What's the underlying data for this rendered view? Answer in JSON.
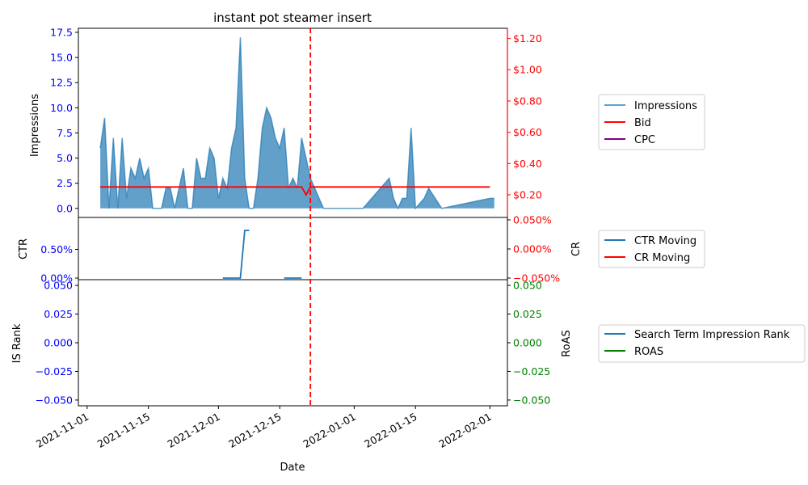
{
  "chart_data": [
    {
      "panel": "top",
      "type": "area",
      "title": "instant pot steamer insert",
      "ylabel_left": "Impressions",
      "ylim_left": [
        -0.9,
        17.9
      ],
      "yticks_left": [
        "0.0",
        "2.5",
        "5.0",
        "7.5",
        "10.0",
        "12.5",
        "15.0",
        "17.5"
      ],
      "ytick_values_left": [
        0,
        2.5,
        5,
        7.5,
        10,
        12.5,
        15,
        17.5
      ],
      "ylim_right": [
        0.055,
        1.265
      ],
      "yticks_right": [
        "$0.20",
        "$0.40",
        "$0.60",
        "$0.80",
        "$1.00",
        "$1.20"
      ],
      "ytick_values_right": [
        0.2,
        0.4,
        0.6,
        0.8,
        1.0,
        1.2
      ],
      "colors": {
        "impressions": "#1f77b4",
        "bid": "#ff0000",
        "cpc": "#800080",
        "left_axis": "#0000ff",
        "right_axis": "#ff0000"
      },
      "legend": [
        "Impressions",
        "Bid",
        "CPC"
      ],
      "legend_placement": "right",
      "series": [
        {
          "name": "Impressions",
          "x": [
            "2021-11-04",
            "2021-11-05",
            "2021-11-06",
            "2021-11-07",
            "2021-11-08",
            "2021-11-09",
            "2021-11-10",
            "2021-11-11",
            "2021-11-12",
            "2021-11-13",
            "2021-11-14",
            "2021-11-15",
            "2021-11-16",
            "2021-11-17",
            "2021-11-18",
            "2021-11-19",
            "2021-11-20",
            "2021-11-21",
            "2021-11-22",
            "2021-11-23",
            "2021-11-24",
            "2021-11-25",
            "2021-11-26",
            "2021-11-27",
            "2021-11-28",
            "2021-11-29",
            "2021-11-30",
            "2021-12-01",
            "2021-12-02",
            "2021-12-03",
            "2021-12-04",
            "2021-12-05",
            "2021-12-06",
            "2021-12-07",
            "2021-12-08",
            "2021-12-09",
            "2021-12-10",
            "2021-12-11",
            "2021-12-12",
            "2021-12-13",
            "2021-12-14",
            "2021-12-15",
            "2021-12-16",
            "2021-12-17",
            "2021-12-18",
            "2021-12-19",
            "2021-12-20",
            "2021-12-21",
            "2021-12-22",
            "2021-12-23",
            "2021-12-24",
            "2021-12-25",
            "2022-01-03",
            "2022-01-09",
            "2022-01-10",
            "2022-01-11",
            "2022-01-12",
            "2022-01-13",
            "2022-01-14",
            "2022-01-15",
            "2022-01-16",
            "2022-01-17",
            "2022-01-18",
            "2022-01-21",
            "2022-02-01",
            "2022-02-02"
          ],
          "values": [
            6,
            9,
            0,
            7,
            0,
            7,
            1,
            4,
            3,
            5,
            3,
            4,
            0,
            0,
            0,
            2,
            2,
            0,
            2,
            4,
            0,
            0,
            5,
            3,
            3,
            6,
            5,
            1,
            3,
            2,
            6,
            8,
            17,
            3,
            0,
            0,
            3,
            8,
            10,
            9,
            7,
            6,
            8,
            2,
            3,
            2,
            7,
            5,
            3,
            2,
            1,
            0,
            0,
            3,
            1,
            0,
            1,
            1,
            8,
            0,
            0.5,
            1,
            2,
            0,
            1,
            1
          ]
        },
        {
          "name": "Bid",
          "x": [
            "2021-11-04",
            "2021-12-19",
            "2021-12-20",
            "2021-12-21",
            "2021-12-22",
            "2022-02-01"
          ],
          "values": [
            0.25,
            0.25,
            0.25,
            0.2,
            0.25,
            0.25
          ]
        },
        {
          "name": "CPC",
          "x": [],
          "values": []
        }
      ]
    },
    {
      "panel": "middle",
      "type": "line",
      "ylabel_left": "CTR",
      "ylabel_right": "CR",
      "yticks_left": [
        "0.00%",
        "0.50%"
      ],
      "ytick_values_left": [
        0,
        0.5
      ],
      "ylim_left": [
        0,
        1.0
      ],
      "yticks_right": [
        "−0.050%",
        "0.000%",
        "0.050%"
      ],
      "ytick_values_right": [
        -0.05,
        0.0,
        0.05
      ],
      "ylim_right": [
        -0.05,
        0.05
      ],
      "colors": {
        "ctr": "#1f77b4",
        "cr": "#ff0000",
        "left_axis": "#0000ff",
        "right_axis": "#ff0000"
      },
      "legend": [
        "CTR Moving",
        "CR Moving"
      ],
      "legend_placement": "right",
      "series": [
        {
          "name": "CTR Moving",
          "segments": [
            {
              "x": [
                "2021-12-02",
                "2021-12-06",
                "2021-12-07",
                "2021-12-08"
              ],
              "values": [
                0,
                0,
                0.83,
                0.83
              ]
            },
            {
              "x": [
                "2021-12-16",
                "2021-12-20"
              ],
              "values": [
                0,
                0
              ]
            }
          ]
        },
        {
          "name": "CR Moving",
          "segments": []
        }
      ]
    },
    {
      "panel": "bottom",
      "type": "line",
      "ylabel_left": "IS Rank",
      "ylabel_right": "RoAS",
      "yticks_left": [
        "−0.050",
        "−0.025",
        "0.000",
        "0.025",
        "0.050"
      ],
      "yticks_right": [
        "−0.050",
        "−0.025",
        "0.000",
        "0.025",
        "0.050"
      ],
      "ytick_values": [
        -0.05,
        -0.025,
        0,
        0.025,
        0.05
      ],
      "ylim": [
        -0.055,
        0.055
      ],
      "colors": {
        "is_rank": "#1f77b4",
        "roas": "#008000",
        "left_axis": "#0000ff",
        "right_axis": "#008000"
      },
      "legend": [
        "Search Term Impression Rank",
        "ROAS"
      ],
      "legend_placement": "right",
      "series": [
        {
          "name": "Search Term Impression Rank",
          "x": [],
          "values": []
        },
        {
          "name": "ROAS",
          "x": [],
          "values": []
        }
      ]
    }
  ],
  "x_axis": {
    "xlabel": "Date",
    "xticks": [
      "2021-11-01",
      "2021-11-15",
      "2021-12-01",
      "2021-12-15",
      "2022-01-01",
      "2022-01-15",
      "2022-02-01"
    ],
    "xlim": [
      "2021-10-30",
      "2022-02-05"
    ],
    "marker_date": "2021-12-22",
    "marker_color": "#ff0000",
    "marker_style": "dashed"
  }
}
